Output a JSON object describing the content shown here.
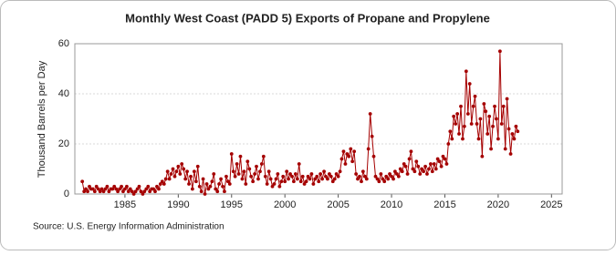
{
  "chart_data": {
    "type": "line",
    "title": "Monthly West Coast (PADD 5) Exports of Propane and Propylene",
    "ylabel": "Thousand Barrels per Day",
    "source": "Source: U.S. Energy Information Administration",
    "color": "#a50000",
    "grid": true,
    "xlim": [
      1980.3,
      2026
    ],
    "xticks": [
      1985,
      1990,
      1995,
      2000,
      2005,
      2010,
      2015,
      2020,
      2025
    ],
    "ylim": [
      0,
      60
    ],
    "yticks": [
      0,
      20,
      40,
      60
    ],
    "x": [
      1981,
      1981.17,
      1981.33,
      1981.5,
      1981.67,
      1981.83,
      1982,
      1982.17,
      1982.33,
      1982.5,
      1982.67,
      1982.83,
      1983,
      1983.17,
      1983.33,
      1983.5,
      1983.67,
      1983.83,
      1984,
      1984.17,
      1984.33,
      1984.5,
      1984.67,
      1984.83,
      1985,
      1985.17,
      1985.33,
      1985.5,
      1985.67,
      1985.83,
      1986,
      1986.17,
      1986.33,
      1986.5,
      1986.67,
      1986.83,
      1987,
      1987.17,
      1987.33,
      1987.5,
      1987.67,
      1987.83,
      1988,
      1988.17,
      1988.33,
      1988.5,
      1988.67,
      1988.83,
      1989,
      1989.17,
      1989.33,
      1989.5,
      1989.67,
      1989.83,
      1990,
      1990.17,
      1990.33,
      1990.5,
      1990.67,
      1990.83,
      1991,
      1991.17,
      1991.33,
      1991.5,
      1991.67,
      1991.83,
      1992,
      1992.17,
      1992.33,
      1992.5,
      1992.67,
      1992.83,
      1993,
      1993.17,
      1993.33,
      1993.5,
      1993.67,
      1993.83,
      1994,
      1994.17,
      1994.33,
      1994.5,
      1994.67,
      1994.83,
      1995,
      1995.17,
      1995.33,
      1995.5,
      1995.67,
      1995.83,
      1996,
      1996.17,
      1996.33,
      1996.5,
      1996.67,
      1996.83,
      1997,
      1997.17,
      1997.33,
      1997.5,
      1997.67,
      1997.83,
      1998,
      1998.17,
      1998.33,
      1998.5,
      1998.67,
      1998.83,
      1999,
      1999.17,
      1999.33,
      1999.5,
      1999.67,
      1999.83,
      2000,
      2000.17,
      2000.33,
      2000.5,
      2000.67,
      2000.83,
      2001,
      2001.17,
      2001.33,
      2001.5,
      2001.67,
      2001.83,
      2002,
      2002.17,
      2002.33,
      2002.5,
      2002.67,
      2002.83,
      2003,
      2003.17,
      2003.33,
      2003.5,
      2003.67,
      2003.83,
      2004,
      2004.17,
      2004.33,
      2004.5,
      2004.67,
      2004.83,
      2005,
      2005.17,
      2005.33,
      2005.5,
      2005.67,
      2005.83,
      2006,
      2006.17,
      2006.33,
      2006.5,
      2006.67,
      2006.83,
      2007,
      2007.17,
      2007.33,
      2007.5,
      2007.67,
      2007.83,
      2008,
      2008.17,
      2008.33,
      2008.5,
      2008.67,
      2008.83,
      2009,
      2009.17,
      2009.33,
      2009.5,
      2009.67,
      2009.83,
      2010,
      2010.17,
      2010.33,
      2010.5,
      2010.67,
      2010.83,
      2011,
      2011.17,
      2011.33,
      2011.5,
      2011.67,
      2011.83,
      2012,
      2012.17,
      2012.33,
      2012.5,
      2012.67,
      2012.83,
      2013,
      2013.17,
      2013.33,
      2013.5,
      2013.67,
      2013.83,
      2014,
      2014.17,
      2014.33,
      2014.5,
      2014.67,
      2014.83,
      2015,
      2015.17,
      2015.33,
      2015.5,
      2015.67,
      2015.83,
      2016,
      2016.17,
      2016.33,
      2016.5,
      2016.67,
      2016.83,
      2017,
      2017.17,
      2017.33,
      2017.5,
      2017.67,
      2017.83,
      2018,
      2018.17,
      2018.33,
      2018.5,
      2018.67,
      2018.83,
      2019,
      2019.17,
      2019.33,
      2019.5,
      2019.67,
      2019.83,
      2020,
      2020.17,
      2020.33,
      2020.5,
      2020.67,
      2020.83,
      2021,
      2021.17,
      2021.33,
      2021.5,
      2021.67,
      2021.83
    ],
    "values": [
      5,
      1,
      2,
      1,
      3,
      2,
      2,
      1,
      3,
      2,
      1,
      2,
      1,
      2,
      3,
      1,
      2,
      2,
      3,
      2,
      1,
      2,
      3,
      1,
      2,
      3,
      1,
      2,
      1,
      0,
      1,
      2,
      3,
      1,
      0,
      1,
      2,
      3,
      1,
      2,
      2,
      1,
      3,
      2,
      4,
      5,
      4,
      6,
      9,
      6,
      8,
      10,
      7,
      9,
      11,
      8,
      12,
      10,
      6,
      9,
      4,
      7,
      2,
      9,
      5,
      11,
      3,
      1,
      6,
      0,
      4,
      2,
      3,
      5,
      8,
      2,
      1,
      4,
      6,
      3,
      1,
      7,
      5,
      4,
      16,
      9,
      7,
      12,
      8,
      15,
      6,
      9,
      4,
      13,
      10,
      7,
      5,
      8,
      11,
      6,
      9,
      12,
      15,
      7,
      4,
      9,
      6,
      3,
      4,
      6,
      8,
      3,
      5,
      7,
      5,
      9,
      6,
      8,
      7,
      5,
      8,
      6,
      12,
      5,
      7,
      4,
      5,
      7,
      6,
      8,
      4,
      6,
      7,
      5,
      8,
      6,
      9,
      7,
      6,
      8,
      7,
      5,
      6,
      8,
      7,
      9,
      14,
      17,
      12,
      16,
      15,
      18,
      13,
      17,
      8,
      6,
      7,
      5,
      9,
      7,
      6,
      18,
      32,
      23,
      15,
      7,
      6,
      5,
      8,
      6,
      5,
      7,
      6,
      8,
      7,
      6,
      9,
      8,
      7,
      10,
      9,
      12,
      11,
      8,
      14,
      17,
      10,
      9,
      13,
      11,
      8,
      10,
      9,
      11,
      8,
      10,
      12,
      9,
      12,
      10,
      14,
      13,
      11,
      15,
      14,
      12,
      20,
      25,
      22,
      31,
      28,
      32,
      24,
      35,
      22,
      27,
      49,
      32,
      44,
      28,
      35,
      39,
      28,
      22,
      30,
      15,
      36,
      33,
      24,
      31,
      18,
      27,
      35,
      30,
      22,
      57,
      28,
      35,
      18,
      38,
      26,
      16,
      24,
      22,
      27,
      25
    ]
  }
}
